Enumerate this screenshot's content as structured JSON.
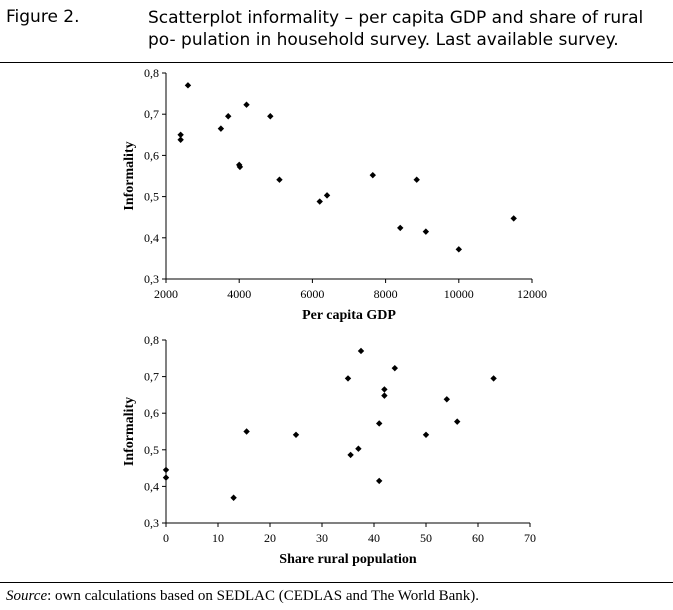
{
  "figure": {
    "label": "Figure 2.",
    "title": "Scatterplot informality – per capita GDP and share of rural po- pulation in household survey. Last available survey."
  },
  "source": {
    "label": "Source",
    "text": ": own calculations based on SEDLAC (CEDLAS and The World Bank)."
  },
  "chart_data": [
    {
      "type": "scatter",
      "title": "",
      "xlabel": "Per capita GDP",
      "ylabel": "Informality",
      "xlim": [
        2000,
        12000
      ],
      "ylim": [
        0.3,
        0.8
      ],
      "xticks": [
        2000,
        4000,
        6000,
        8000,
        10000,
        12000
      ],
      "xtick_labels": [
        "2000",
        "4000",
        "6000",
        "8000",
        "10000",
        "12000"
      ],
      "yticks": [
        0.3,
        0.4,
        0.5,
        0.6,
        0.7,
        0.8
      ],
      "ytick_labels": [
        "0,3",
        "0,4",
        "0,5",
        "0,6",
        "0,7",
        "0,8"
      ],
      "grid": false,
      "marker": "diamond",
      "color": "#000000",
      "points": [
        {
          "x": 2400,
          "y": 0.65
        },
        {
          "x": 2400,
          "y": 0.638
        },
        {
          "x": 2600,
          "y": 0.77
        },
        {
          "x": 3500,
          "y": 0.665
        },
        {
          "x": 3700,
          "y": 0.695
        },
        {
          "x": 4000,
          "y": 0.577
        },
        {
          "x": 4020,
          "y": 0.572
        },
        {
          "x": 4200,
          "y": 0.723
        },
        {
          "x": 4850,
          "y": 0.695
        },
        {
          "x": 5100,
          "y": 0.541
        },
        {
          "x": 6200,
          "y": 0.488
        },
        {
          "x": 6400,
          "y": 0.503
        },
        {
          "x": 7650,
          "y": 0.552
        },
        {
          "x": 8400,
          "y": 0.424
        },
        {
          "x": 8850,
          "y": 0.541
        },
        {
          "x": 9100,
          "y": 0.415
        },
        {
          "x": 10000,
          "y": 0.372
        },
        {
          "x": 11500,
          "y": 0.447
        }
      ]
    },
    {
      "type": "scatter",
      "title": "",
      "xlabel": "Share rural population",
      "ylabel": "Informality",
      "xlim": [
        0,
        70
      ],
      "ylim": [
        0.3,
        0.8
      ],
      "xticks": [
        0,
        10,
        20,
        30,
        40,
        50,
        60,
        70
      ],
      "xtick_labels": [
        "0",
        "10",
        "20",
        "30",
        "40",
        "50",
        "60",
        "70"
      ],
      "yticks": [
        0.3,
        0.4,
        0.5,
        0.6,
        0.7,
        0.8
      ],
      "ytick_labels": [
        "0,3",
        "0,4",
        "0,5",
        "0,6",
        "0,7",
        "0,8"
      ],
      "grid": false,
      "marker": "diamond",
      "color": "#000000",
      "points": [
        {
          "x": 0,
          "y": 0.445
        },
        {
          "x": 0,
          "y": 0.424
        },
        {
          "x": 13,
          "y": 0.369
        },
        {
          "x": 15.5,
          "y": 0.55
        },
        {
          "x": 25,
          "y": 0.541
        },
        {
          "x": 35,
          "y": 0.695
        },
        {
          "x": 35.5,
          "y": 0.486
        },
        {
          "x": 37,
          "y": 0.503
        },
        {
          "x": 37.5,
          "y": 0.77
        },
        {
          "x": 41,
          "y": 0.572
        },
        {
          "x": 41,
          "y": 0.415
        },
        {
          "x": 42,
          "y": 0.665
        },
        {
          "x": 42,
          "y": 0.648
        },
        {
          "x": 44,
          "y": 0.723
        },
        {
          "x": 50,
          "y": 0.541
        },
        {
          "x": 54,
          "y": 0.638
        },
        {
          "x": 56,
          "y": 0.577
        },
        {
          "x": 63,
          "y": 0.695
        }
      ]
    }
  ]
}
